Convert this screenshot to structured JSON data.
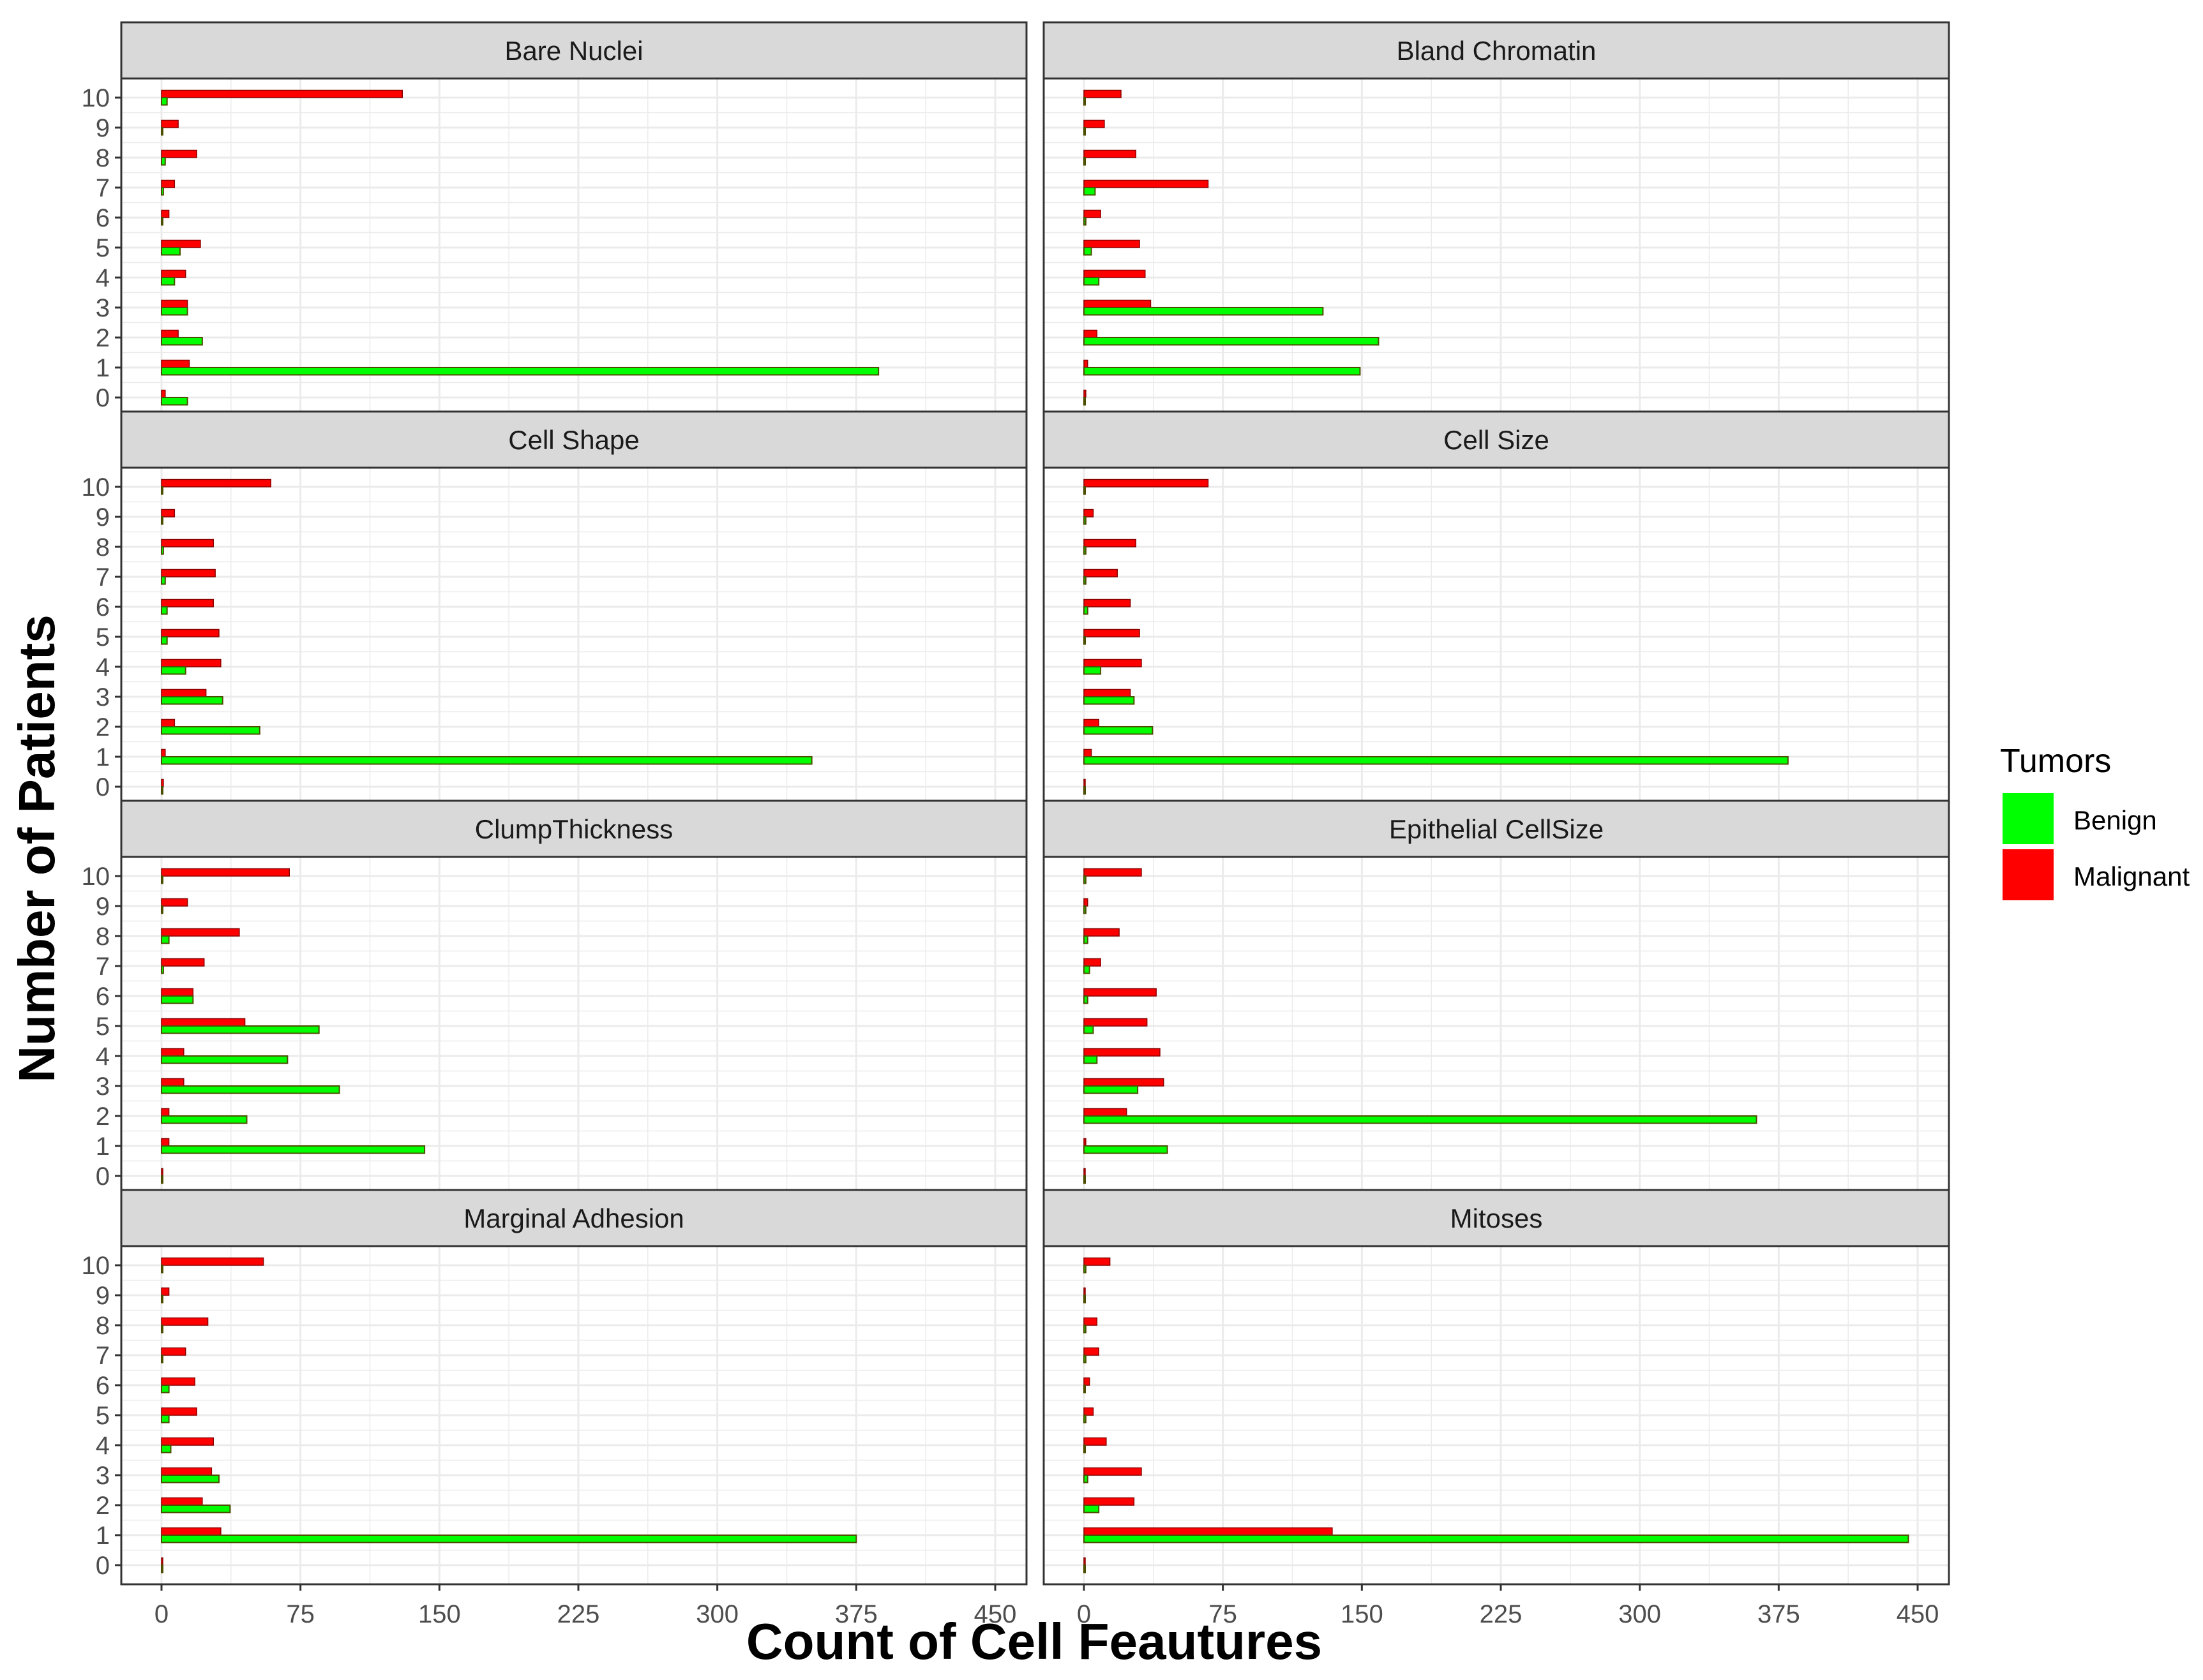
{
  "chart_data": {
    "type": "bar",
    "orientation": "horizontal",
    "facet_layout": "2 columns x 4 rows",
    "xlabel": "Count of Cell Feautures",
    "ylabel": "Number of Patients",
    "xlim": [
      0,
      450
    ],
    "x_ticks": [
      "0",
      "75",
      "150",
      "225",
      "300",
      "375",
      "450"
    ],
    "categories": [
      "0",
      "1",
      "2",
      "3",
      "4",
      "5",
      "6",
      "7",
      "8",
      "9",
      "10"
    ],
    "grid": true,
    "legend": {
      "title": "Tumors",
      "position": "right",
      "items": [
        {
          "name": "Benign",
          "color": "#00ff00"
        },
        {
          "name": "Malignant",
          "color": "#ff0000"
        }
      ]
    },
    "colors": {
      "benign": "#00ff00",
      "malignant": "#ff0000",
      "bar_outline": "#4d4d00",
      "strip_fill": "#d9d9d9",
      "grid": "#ebebeb"
    },
    "panels": [
      {
        "title": "Bare Nuclei",
        "benign": [
          14,
          387,
          22,
          14,
          7,
          10,
          0,
          1,
          2,
          0,
          3
        ],
        "malignant": [
          2,
          15,
          9,
          14,
          13,
          21,
          4,
          7,
          19,
          9,
          130
        ]
      },
      {
        "title": "Bland Chromatin",
        "benign": [
          0,
          149,
          159,
          129,
          8,
          4,
          1,
          6,
          0,
          0,
          0
        ],
        "malignant": [
          1,
          2,
          7,
          36,
          33,
          30,
          9,
          67,
          28,
          11,
          20
        ]
      },
      {
        "title": "Cell Shape",
        "benign": [
          0,
          351,
          53,
          33,
          13,
          3,
          3,
          2,
          1,
          0,
          0
        ],
        "malignant": [
          1,
          2,
          7,
          24,
          32,
          31,
          28,
          29,
          28,
          7,
          59
        ]
      },
      {
        "title": "Cell Size",
        "benign": [
          0,
          380,
          37,
          27,
          9,
          0,
          2,
          1,
          1,
          1,
          0
        ],
        "malignant": [
          0,
          4,
          8,
          25,
          31,
          30,
          25,
          18,
          28,
          5,
          67
        ]
      },
      {
        "title": "ClumpThickness",
        "benign": [
          0,
          142,
          46,
          96,
          68,
          85,
          17,
          1,
          4,
          0,
          0
        ],
        "malignant": [
          0,
          4,
          4,
          12,
          12,
          45,
          17,
          23,
          42,
          14,
          69
        ]
      },
      {
        "title": "Epithelial CellSize",
        "benign": [
          0,
          45,
          363,
          29,
          7,
          5,
          2,
          3,
          2,
          1,
          1
        ],
        "malignant": [
          0,
          1,
          23,
          43,
          41,
          34,
          39,
          9,
          19,
          2,
          31
        ]
      },
      {
        "title": "Marginal Adhesion",
        "benign": [
          0,
          375,
          37,
          31,
          5,
          4,
          4,
          0,
          0,
          0,
          0
        ],
        "malignant": [
          0,
          32,
          22,
          27,
          28,
          19,
          18,
          13,
          25,
          4,
          55
        ]
      },
      {
        "title": "Mitoses",
        "benign": [
          0,
          445,
          8,
          2,
          0,
          1,
          0,
          1,
          1,
          0,
          1
        ],
        "malignant": [
          0,
          134,
          27,
          31,
          12,
          5,
          3,
          8,
          7,
          0,
          14
        ]
      }
    ]
  }
}
